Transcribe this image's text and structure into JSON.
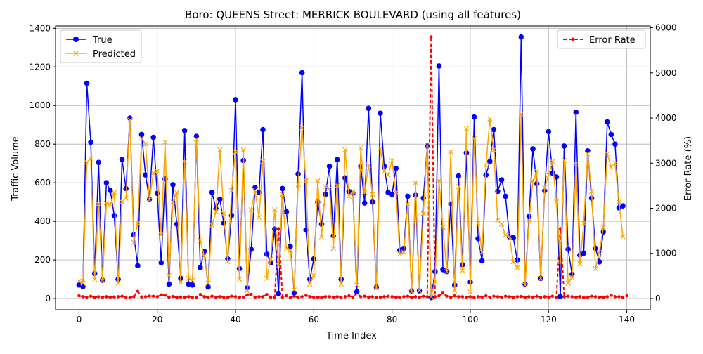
{
  "chart_data": {
    "type": "line",
    "title": "Boro: QUEENS Street: MERRICK BOULEVARD (using all features)",
    "xlabel": "Time Index",
    "ylabel": "Traffic Volume",
    "ylabel_right": "Error Rate (%)",
    "xlim": [
      -6,
      146
    ],
    "ylim": [
      -58,
      1412
    ],
    "ylim_right": [
      -250,
      6040
    ],
    "x_ticks": [
      0,
      20,
      40,
      60,
      80,
      100,
      120,
      140
    ],
    "y_ticks": [
      0,
      200,
      400,
      600,
      800,
      1000,
      1200,
      1400
    ],
    "y_ticks_right": [
      0,
      1000,
      2000,
      3000,
      4000,
      5000,
      6000
    ],
    "grid": true,
    "legend_left": {
      "placement": "top-left",
      "entries": [
        "True",
        "Predicted"
      ]
    },
    "legend_right": {
      "placement": "top-right",
      "entries": [
        "Error Rate"
      ]
    },
    "series": [
      {
        "name": "True",
        "color": "#0000ff",
        "axis": "left",
        "marker": "circle",
        "values": [
          70,
          62,
          1115,
          810,
          130,
          705,
          95,
          600,
          560,
          430,
          100,
          720,
          570,
          935,
          330,
          170,
          850,
          640,
          515,
          835,
          545,
          185,
          620,
          75,
          590,
          385,
          105,
          870,
          75,
          70,
          840,
          160,
          245,
          60,
          550,
          465,
          515,
          390,
          205,
          430,
          1030,
          155,
          715,
          55,
          255,
          575,
          550,
          875,
          230,
          185,
          360,
          25,
          570,
          450,
          270,
          30,
          645,
          1170,
          355,
          100,
          205,
          500,
          385,
          540,
          685,
          325,
          720,
          100,
          625,
          555,
          545,
          35,
          685,
          495,
          985,
          500,
          60,
          960,
          685,
          550,
          540,
          675,
          250,
          260,
          530,
          40,
          535,
          40,
          520,
          790,
          5,
          140,
          1205,
          150,
          140,
          490,
          70,
          635,
          175,
          755,
          85,
          940,
          310,
          195,
          640,
          710,
          875,
          555,
          615,
          530,
          320,
          315,
          200,
          1355,
          75,
          425,
          775,
          595,
          105,
          560,
          865,
          650,
          630,
          10,
          790,
          255,
          125,
          965,
          225,
          235,
          765,
          520,
          260,
          190,
          345,
          915,
          850,
          800,
          470,
          480
        ]
      },
      {
        "name": "Predicted",
        "color": "#ffa500",
        "axis": "left",
        "marker": "x",
        "values": [
          90,
          80,
          705,
          725,
          100,
          490,
          95,
          495,
          485,
          550,
          80,
          500,
          520,
          925,
          290,
          390,
          830,
          800,
          510,
          650,
          660,
          330,
          810,
          120,
          500,
          550,
          85,
          710,
          105,
          95,
          825,
          300,
          220,
          80,
          380,
          450,
          770,
          440,
          190,
          560,
          760,
          100,
          770,
          40,
          460,
          560,
          420,
          710,
          105,
          205,
          460,
          170,
          540,
          260,
          250,
          45,
          590,
          885,
          610,
          75,
          120,
          610,
          320,
          580,
          570,
          260,
          585,
          75,
          770,
          530,
          555,
          70,
          780,
          550,
          690,
          540,
          55,
          775,
          660,
          640,
          715,
          550,
          230,
          240,
          490,
          35,
          600,
          40,
          440,
          790,
          10,
          90,
          610,
          370,
          140,
          760,
          40,
          580,
          145,
          880,
          35,
          830,
          390,
          240,
          690,
          930,
          770,
          405,
          385,
          330,
          320,
          190,
          160,
          955,
          70,
          400,
          610,
          660,
          105,
          575,
          640,
          710,
          500,
          190,
          715,
          80,
          110,
          695,
          180,
          390,
          750,
          555,
          155,
          240,
          370,
          750,
          680,
          700,
          500,
          320
        ]
      },
      {
        "name": "Error Rate",
        "color": "#ff0000",
        "axis": "right",
        "marker": "dot",
        "dashed": true,
        "values": [
          60,
          40,
          30,
          50,
          25,
          40,
          30,
          40,
          30,
          35,
          40,
          50,
          30,
          20,
          40,
          160,
          35,
          40,
          55,
          50,
          40,
          80,
          70,
          30,
          45,
          20,
          35,
          30,
          40,
          30,
          30,
          90,
          40,
          20,
          50,
          30,
          40,
          30,
          20,
          50,
          40,
          30,
          30,
          80,
          90,
          30,
          40,
          40,
          90,
          30,
          20,
          1550,
          30,
          60,
          20,
          50,
          20,
          40,
          70,
          40,
          30,
          30,
          20,
          40,
          40,
          30,
          40,
          20,
          40,
          60,
          30,
          120,
          40,
          50,
          30,
          40,
          20,
          30,
          40,
          50,
          40,
          30,
          25,
          40,
          50,
          20,
          40,
          30,
          50,
          40,
          5800,
          40,
          60,
          120,
          50,
          30,
          60,
          40,
          40,
          30,
          40,
          20,
          40,
          30,
          60,
          30,
          50,
          40,
          30,
          50,
          40,
          30,
          40,
          45,
          30,
          40,
          30,
          50,
          30,
          40,
          30,
          50,
          20,
          1550,
          40,
          50,
          40,
          30,
          40,
          20,
          30,
          50,
          40,
          30,
          30,
          40,
          70,
          40,
          40,
          30,
          60
        ]
      }
    ]
  }
}
